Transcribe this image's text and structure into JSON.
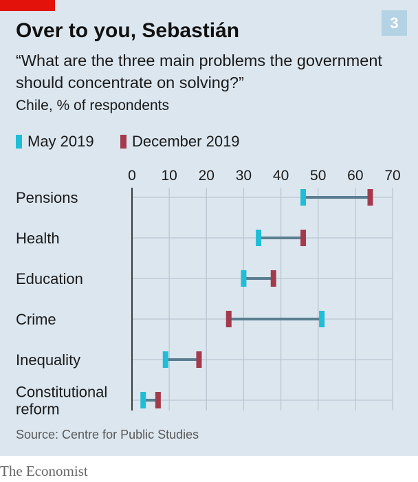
{
  "badge": "3",
  "title": "Over to you, Sebastián",
  "subtitle": "“What are the three main problems the government should concentrate on solving?”",
  "subnote": "Chile, % of respondents",
  "source": "Source: Centre for Public Studies",
  "publisher": "The Economist",
  "colors": {
    "background": "#dce6ee",
    "series_may": "#1fbed6",
    "series_dec": "#a33b4d",
    "connector": "#5a7e90",
    "grid": "#b9c7d3",
    "accent": "#e3120b"
  },
  "chart_data": {
    "type": "dot-range",
    "xlim": [
      0,
      70
    ],
    "ticks": [
      "0",
      "10",
      "20",
      "30",
      "40",
      "50",
      "60",
      "70"
    ],
    "tick_values": [
      0,
      10,
      20,
      30,
      40,
      50,
      60,
      70
    ],
    "grid": true,
    "legend_position": "top-left",
    "categories": [
      "Pensions",
      "Health",
      "Education",
      "Crime",
      "Inequality",
      "Constitutional reform"
    ],
    "category_lines": [
      [
        "Pensions"
      ],
      [
        "Health"
      ],
      [
        "Education"
      ],
      [
        "Crime"
      ],
      [
        "Inequality"
      ],
      [
        "Constitutional",
        "reform"
      ]
    ],
    "series": [
      {
        "name": "May 2019",
        "color": "#1fbed6",
        "values": [
          46,
          34,
          30,
          51,
          9,
          3
        ]
      },
      {
        "name": "December 2019",
        "color": "#a33b4d",
        "values": [
          64,
          46,
          38,
          26,
          18,
          7
        ]
      }
    ]
  }
}
